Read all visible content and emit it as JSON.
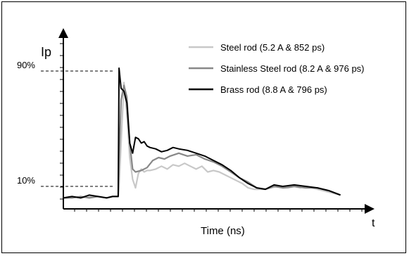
{
  "chart_data": {
    "type": "line",
    "xlabel": "Time  (ns)",
    "ylabel": "Ip",
    "x_axis_end_label": "t",
    "y_ticks": [
      {
        "label": "90%",
        "value": 90
      },
      {
        "label": "10%",
        "value": 10
      }
    ],
    "ylim": [
      0,
      100
    ],
    "xlim": [
      0,
      100
    ],
    "grid": false,
    "legend_position": "top-right",
    "series": [
      {
        "name": "Steel rod (5.2 A & 852 ps)",
        "color": "#c8c8c8",
        "x": [
          0,
          3,
          6,
          9,
          12,
          15,
          17,
          19.0,
          19.3,
          20,
          21,
          22,
          23,
          24,
          25,
          26,
          27,
          28,
          29,
          30,
          32,
          34,
          36,
          38,
          40,
          42,
          44,
          46,
          48,
          50,
          52,
          54,
          56,
          58,
          60,
          62,
          64,
          66,
          68,
          70,
          72,
          74,
          76,
          78,
          80,
          82,
          84,
          86,
          88,
          92,
          96
        ],
        "y": [
          2,
          3,
          2,
          3,
          3,
          2,
          3,
          3,
          10,
          40,
          82,
          60,
          30,
          15,
          9,
          19,
          22,
          20,
          21,
          21,
          22,
          24,
          22,
          25,
          24,
          26,
          24,
          22,
          24,
          20,
          21,
          20,
          18,
          16,
          14,
          12,
          9,
          8,
          8,
          8,
          9,
          10,
          9,
          9,
          10,
          9,
          10,
          9,
          8,
          6,
          4
        ]
      },
      {
        "name": "Stainless Steel rod (8.2 A & 976 ps)",
        "color": "#888888",
        "x": [
          0,
          3,
          6,
          9,
          12,
          15,
          17,
          19.0,
          19.3,
          20,
          21,
          22,
          23,
          24,
          25,
          27,
          29,
          31,
          33,
          35,
          37,
          40,
          43,
          46,
          49,
          52,
          55,
          58,
          61,
          64,
          67,
          70,
          73,
          76,
          80,
          84,
          88,
          92,
          96
        ],
        "y": [
          2,
          2,
          3,
          2,
          3,
          2,
          3,
          3,
          28,
          70,
          80,
          72,
          40,
          22,
          20,
          21,
          23,
          28,
          30,
          29,
          31,
          33,
          31,
          32,
          29,
          27,
          24,
          20,
          16,
          13,
          9,
          8,
          10,
          9,
          10,
          9,
          9,
          7,
          4
        ]
      },
      {
        "name": "Brass rod (8.8 A & 796 ps)",
        "color": "#000000",
        "x": [
          0,
          3,
          6,
          9,
          12,
          15,
          17,
          19.0,
          19.3,
          20,
          21,
          22,
          23,
          24,
          25,
          26,
          27,
          28,
          29,
          30,
          32,
          34,
          36,
          38,
          40,
          43,
          46,
          49,
          52,
          55,
          58,
          61,
          64,
          67,
          70,
          73,
          76,
          80,
          84,
          88,
          92,
          96
        ],
        "y": [
          2,
          3,
          2,
          4,
          3,
          2,
          3,
          3,
          92,
          78,
          76,
          68,
          40,
          33,
          44,
          43,
          40,
          41,
          38,
          37,
          36,
          34,
          35,
          37,
          36,
          35,
          33,
          31,
          28,
          25,
          21,
          16,
          12,
          9,
          8,
          11,
          10,
          11,
          10,
          9,
          7,
          4
        ]
      }
    ]
  }
}
